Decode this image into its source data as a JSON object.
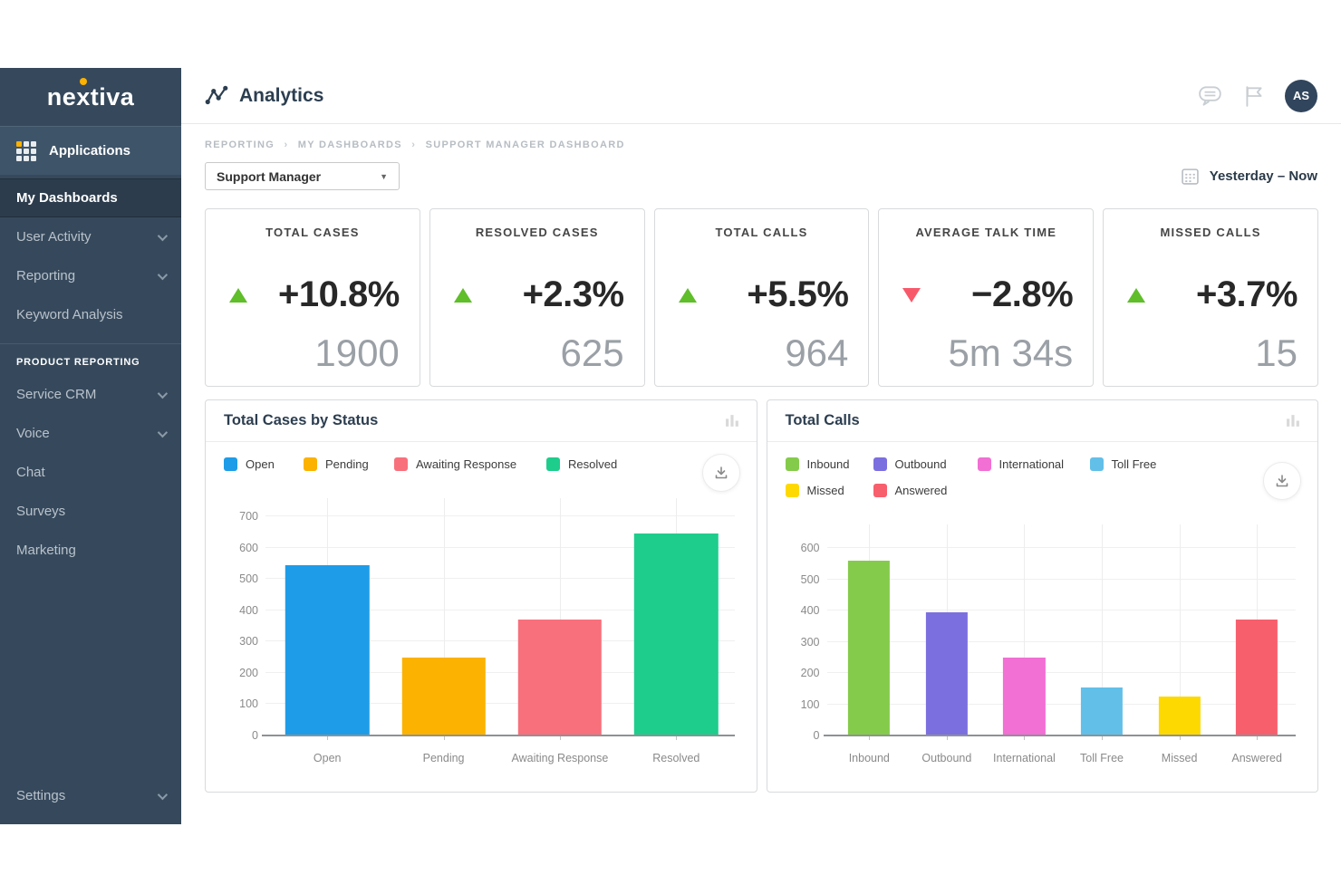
{
  "sidebar": {
    "logo_text": "nextiva",
    "applications_label": "Applications",
    "items": [
      {
        "label": "My Dashboards",
        "active": true,
        "chevron": false
      },
      {
        "label": "User Activity",
        "active": false,
        "chevron": true
      },
      {
        "label": "Reporting",
        "active": false,
        "chevron": true
      },
      {
        "label": "Keyword Analysis",
        "active": false,
        "chevron": false
      }
    ],
    "section_label": "PRODUCT REPORTING",
    "section_items": [
      {
        "label": "Service CRM",
        "chevron": true
      },
      {
        "label": "Voice",
        "chevron": true
      },
      {
        "label": "Chat",
        "chevron": false
      },
      {
        "label": "Surveys",
        "chevron": false
      },
      {
        "label": "Marketing",
        "chevron": false
      }
    ],
    "settings": {
      "label": "Settings",
      "chevron": true
    }
  },
  "header": {
    "title": "Analytics",
    "avatar_initials": "AS"
  },
  "breadcrumb": {
    "items": [
      "REPORTING",
      "MY DASHBOARDS",
      "SUPPORT MANAGER DASHBOARD"
    ],
    "separator": "›"
  },
  "toolbar": {
    "dashboard_selector_value": "Support Manager",
    "date_range": "Yesterday – Now"
  },
  "kpis": [
    {
      "title": "TOTAL CASES",
      "change": "+10.8%",
      "direction": "up",
      "value": "1900"
    },
    {
      "title": "RESOLVED CASES",
      "change": "+2.3%",
      "direction": "up",
      "value": "625"
    },
    {
      "title": "TOTAL CALLS",
      "change": "+5.5%",
      "direction": "up",
      "value": "964"
    },
    {
      "title": "AVERAGE TALK TIME",
      "change": "−2.8%",
      "direction": "down",
      "value": "5m 34s"
    },
    {
      "title": "MISSED CALLS",
      "change": "+3.7%",
      "direction": "up",
      "value": "15"
    }
  ],
  "chart_data": [
    {
      "type": "bar",
      "title": "Total Cases by Status",
      "categories": [
        "Open",
        "Pending",
        "Awaiting Response",
        "Resolved"
      ],
      "values": [
        545,
        248,
        370,
        645
      ],
      "colors": [
        "#1e9ce8",
        "#fbb200",
        "#f8707c",
        "#1ecd8c"
      ],
      "ylim": [
        0,
        700
      ],
      "ytick_step": 100,
      "grid": true,
      "legend_position": "top",
      "xlabel": "",
      "ylabel": ""
    },
    {
      "type": "bar",
      "title": "Total Calls",
      "categories": [
        "Inbound",
        "Outbound",
        "International",
        "Toll Free",
        "Missed",
        "Answered"
      ],
      "values": [
        560,
        395,
        248,
        155,
        125,
        370
      ],
      "colors": [
        "#85cb4b",
        "#7b6fe0",
        "#f26fd4",
        "#62bfe8",
        "#fed901",
        "#f85f6d"
      ],
      "ylim": [
        0,
        600
      ],
      "ytick_step": 100,
      "grid": true,
      "legend_position": "top",
      "xlabel": "",
      "ylabel": ""
    }
  ],
  "icons": {
    "analytics": "line-chart-icon",
    "applications": "grid-icon",
    "top_right": [
      "chat-bubble-icon",
      "flag-icon"
    ],
    "date": "calendar-icon",
    "chart_header": "bar-chart-icon",
    "chart_download": "download-icon"
  },
  "colors": {
    "sidebar_bg": "#36495c",
    "sidebar_active_bg": "#2c3c4c",
    "brand_orange": "#fbb200",
    "up_green": "#5fbe2a",
    "down_red": "#f8596a",
    "title_navy": "#2c3e50"
  }
}
